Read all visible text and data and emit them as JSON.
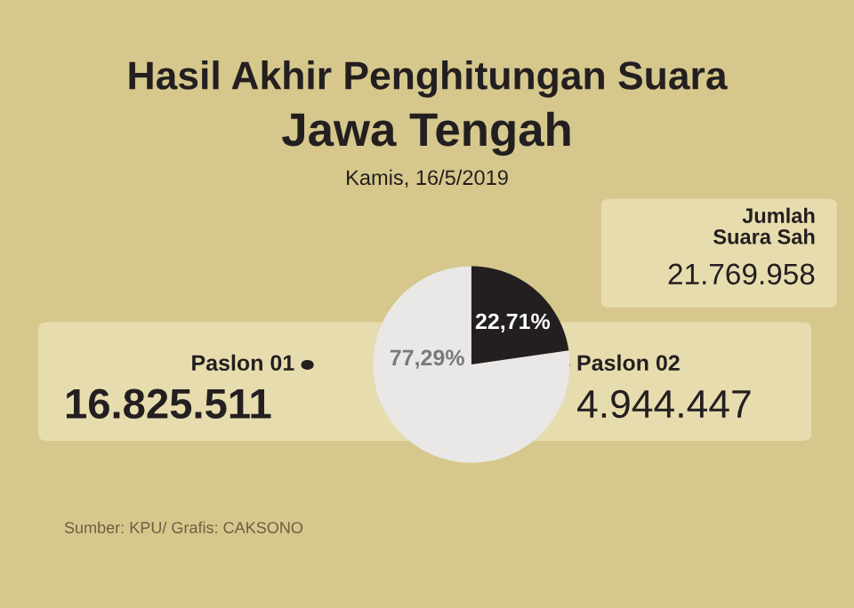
{
  "chart_data": {
    "type": "pie",
    "title": "Hasil Akhir Penghitungan Suara\nJawa Tengah",
    "subtitle": "Kamis, 16/5/2019",
    "categories": [
      "Paslon 01",
      "Paslon 02"
    ],
    "values": [
      77.29,
      22.71
    ],
    "colors": [
      "#e9e8e6",
      "#231f20"
    ],
    "value_labels": [
      "77,29%",
      "22,71%"
    ],
    "annotations": [
      "Jumlah\nSuara Sah",
      "21.769.958",
      "16.825.511",
      "4.944.447",
      "Sumber: KPU/ Grafis: CAKSONO"
    ]
  }
}
